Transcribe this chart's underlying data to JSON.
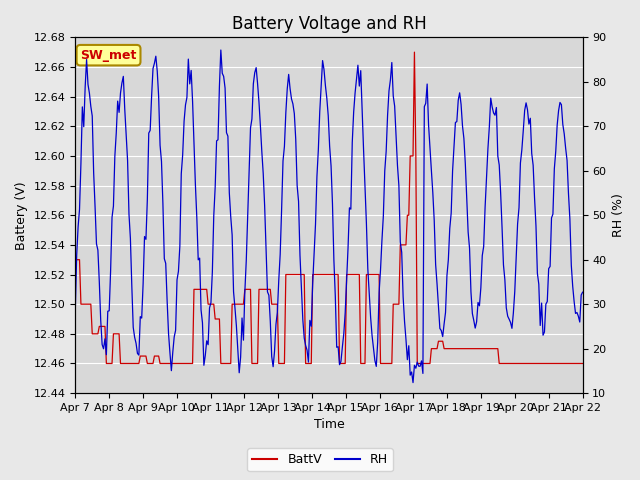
{
  "title": "Battery Voltage and RH",
  "xlabel": "Time",
  "ylabel_left": "Battery (V)",
  "ylabel_right": "RH (%)",
  "ylim_left": [
    12.44,
    12.68
  ],
  "ylim_right": [
    10,
    90
  ],
  "yticks_left": [
    12.44,
    12.46,
    12.48,
    12.5,
    12.52,
    12.54,
    12.56,
    12.58,
    12.6,
    12.62,
    12.64,
    12.66,
    12.68
  ],
  "yticks_right": [
    10,
    20,
    30,
    40,
    50,
    60,
    70,
    80,
    90
  ],
  "xtick_labels": [
    "Apr 7",
    "Apr 8",
    "Apr 9",
    "Apr 10",
    "Apr 11",
    "Apr 12",
    "Apr 13",
    "Apr 14",
    "Apr 15",
    "Apr 16",
    "Apr 17",
    "Apr 18",
    "Apr 19",
    "Apr 20",
    "Apr 21",
    "Apr 22"
  ],
  "batt_color": "#cc0000",
  "rh_color": "#0000cc",
  "legend_labels": [
    "BattV",
    "RH"
  ],
  "annotation_text": "SW_met",
  "annotation_bg": "#ffff99",
  "annotation_border": "#aa8800",
  "fig_bg": "#e8e8e8",
  "plot_bg": "#d8d8d8",
  "grid_color": "#ffffff",
  "title_fontsize": 12,
  "axis_fontsize": 9,
  "tick_fontsize": 8,
  "legend_fontsize": 9
}
